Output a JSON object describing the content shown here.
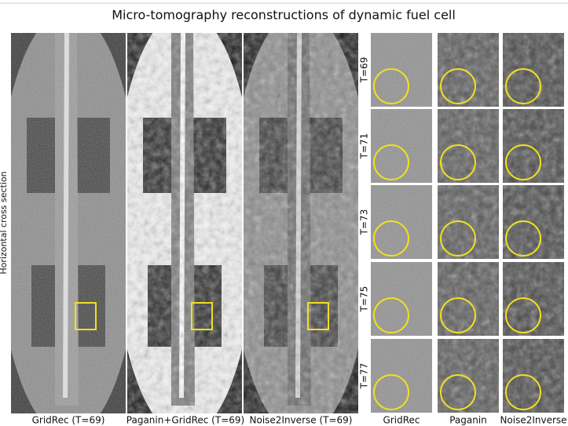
{
  "title": "Micro-tomography reconstructions of dynamic fuel cell",
  "side_label": "Horizontal cross section",
  "panels": [
    {
      "caption": "GridRec (T=69)"
    },
    {
      "caption": "Paganin+GridRec (T=69)"
    },
    {
      "caption": "Noise2Inverse (T=69)"
    }
  ],
  "time_labels": [
    "T=69",
    "T=71",
    "T=73",
    "T=75",
    "T=77"
  ],
  "crop_columns": [
    "GridRec",
    "Paganin",
    "Noise2Inverse"
  ]
}
